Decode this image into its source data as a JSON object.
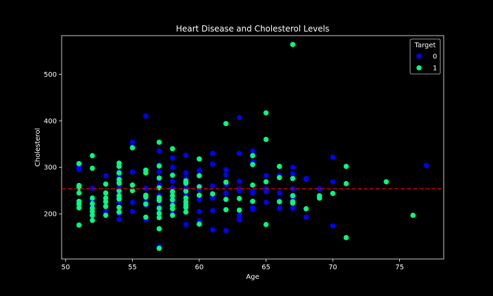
{
  "chart_data": {
    "type": "scatter",
    "title": "Heart Disease and Cholesterol Levels",
    "xlabel": "Age",
    "ylabel": "Cholesterol",
    "xlim": [
      49.7,
      78.3
    ],
    "ylim": [
      103,
      583
    ],
    "xticks": [
      50,
      55,
      60,
      65,
      70,
      75
    ],
    "yticks": [
      200,
      300,
      400,
      500
    ],
    "grid": false,
    "legend": {
      "title": "Target",
      "placement": "top-right"
    },
    "reference_line": {
      "y": 254,
      "color": "#cc0000",
      "style": "dashed"
    },
    "series": [
      {
        "name": "0",
        "color": "#0000ff",
        "points": [
          [
            51,
            300
          ],
          [
            51,
            305
          ],
          [
            51,
            298
          ],
          [
            51,
            295
          ],
          [
            52,
            255
          ],
          [
            52,
            230
          ],
          [
            52,
            228
          ],
          [
            52,
            215
          ],
          [
            52,
            205
          ],
          [
            52,
            200
          ],
          [
            52,
            195
          ],
          [
            53,
            282
          ],
          [
            53,
            265
          ],
          [
            53,
            245
          ],
          [
            53,
            228
          ],
          [
            53,
            205
          ],
          [
            54,
            290
          ],
          [
            54,
            283
          ],
          [
            54,
            270
          ],
          [
            54,
            258
          ],
          [
            54,
            246
          ],
          [
            54,
            236
          ],
          [
            54,
            226
          ],
          [
            54,
            215
          ],
          [
            54,
            200
          ],
          [
            54,
            188
          ],
          [
            55,
            354
          ],
          [
            55,
            345
          ],
          [
            55,
            290
          ],
          [
            55,
            262
          ],
          [
            55,
            225
          ],
          [
            55,
            205
          ],
          [
            56,
            410
          ],
          [
            56,
            290
          ],
          [
            56,
            255
          ],
          [
            56,
            240
          ],
          [
            56,
            225
          ],
          [
            56,
            218
          ],
          [
            56,
            187
          ],
          [
            57,
            335
          ],
          [
            57,
            305
          ],
          [
            57,
            290
          ],
          [
            57,
            276
          ],
          [
            57,
            262
          ],
          [
            57,
            240
          ],
          [
            57,
            233
          ],
          [
            57,
            228
          ],
          [
            57,
            215
          ],
          [
            57,
            205
          ],
          [
            57,
            130
          ],
          [
            58,
            320
          ],
          [
            58,
            300
          ],
          [
            58,
            284
          ],
          [
            58,
            270
          ],
          [
            58,
            256
          ],
          [
            58,
            245
          ],
          [
            58,
            234
          ],
          [
            58,
            225
          ],
          [
            58,
            218
          ],
          [
            58,
            212
          ],
          [
            58,
            200
          ],
          [
            59,
            326
          ],
          [
            59,
            288
          ],
          [
            59,
            276
          ],
          [
            59,
            264
          ],
          [
            59,
            255
          ],
          [
            59,
            240
          ],
          [
            59,
            224
          ],
          [
            59,
            213
          ],
          [
            59,
            204
          ],
          [
            59,
            177
          ],
          [
            60,
            293
          ],
          [
            60,
            282
          ],
          [
            60,
            260
          ],
          [
            60,
            252
          ],
          [
            60,
            230
          ],
          [
            60,
            205
          ],
          [
            60,
            185
          ],
          [
            61,
            330
          ],
          [
            61,
            307
          ],
          [
            61,
            260
          ],
          [
            61,
            243
          ],
          [
            61,
            234
          ],
          [
            61,
            207
          ],
          [
            61,
            166
          ],
          [
            62,
            295
          ],
          [
            62,
            284
          ],
          [
            62,
            268
          ],
          [
            62,
            263
          ],
          [
            62,
            245
          ],
          [
            62,
            232
          ],
          [
            62,
            209
          ],
          [
            62,
            164
          ],
          [
            63,
            407
          ],
          [
            63,
            330
          ],
          [
            63,
            270
          ],
          [
            63,
            254
          ],
          [
            63,
            250
          ],
          [
            63,
            197
          ],
          [
            63,
            192
          ],
          [
            63,
            187
          ],
          [
            64,
            335
          ],
          [
            64,
            326
          ],
          [
            64,
            312
          ],
          [
            64,
            305
          ],
          [
            64,
            248
          ],
          [
            64,
            245
          ],
          [
            64,
            226
          ],
          [
            64,
            213
          ],
          [
            64,
            210
          ],
          [
            65,
            282
          ],
          [
            65,
            269
          ],
          [
            65,
            254
          ],
          [
            65,
            248
          ],
          [
            65,
            225
          ],
          [
            66,
            283
          ],
          [
            66,
            245
          ],
          [
            66,
            228
          ],
          [
            66,
            212
          ],
          [
            67,
            300
          ],
          [
            67,
            286
          ],
          [
            67,
            276
          ],
          [
            67,
            254
          ],
          [
            67,
            240
          ],
          [
            67,
            230
          ],
          [
            67,
            212
          ],
          [
            68,
            276
          ],
          [
            68,
            274
          ],
          [
            68,
            193
          ],
          [
            69,
            254
          ],
          [
            70,
            322
          ],
          [
            70,
            269
          ],
          [
            70,
            174
          ],
          [
            77,
            304
          ]
        ]
      },
      {
        "name": "1",
        "color": "#00ff7f",
        "points": [
          [
            51,
            308
          ],
          [
            51,
            261
          ],
          [
            51,
            256
          ],
          [
            51,
            245
          ],
          [
            51,
            227
          ],
          [
            51,
            221
          ],
          [
            51,
            213
          ],
          [
            51,
            176
          ],
          [
            52,
            325
          ],
          [
            52,
            298
          ],
          [
            52,
            234
          ],
          [
            52,
            222
          ],
          [
            52,
            212
          ],
          [
            52,
            205
          ],
          [
            52,
            197
          ],
          [
            52,
            186
          ],
          [
            53,
            264
          ],
          [
            53,
            245
          ],
          [
            53,
            234
          ],
          [
            53,
            226
          ],
          [
            53,
            216
          ],
          [
            53,
            197
          ],
          [
            54,
            309
          ],
          [
            54,
            302
          ],
          [
            54,
            288
          ],
          [
            54,
            274
          ],
          [
            54,
            266
          ],
          [
            54,
            250
          ],
          [
            54,
            239
          ],
          [
            54,
            232
          ],
          [
            54,
            214
          ],
          [
            54,
            204
          ],
          [
            55,
            342
          ],
          [
            55,
            262
          ],
          [
            55,
            250
          ],
          [
            56,
            294
          ],
          [
            56,
            288
          ],
          [
            56,
            240
          ],
          [
            56,
            236
          ],
          [
            56,
            221
          ],
          [
            56,
            193
          ],
          [
            57,
            354
          ],
          [
            57,
            303
          ],
          [
            57,
            277
          ],
          [
            57,
            256
          ],
          [
            57,
            235
          ],
          [
            57,
            229
          ],
          [
            57,
            212
          ],
          [
            57,
            201
          ],
          [
            57,
            192
          ],
          [
            57,
            168
          ],
          [
            57,
            126
          ],
          [
            58,
            340
          ],
          [
            58,
            283
          ],
          [
            58,
            248
          ],
          [
            58,
            239
          ],
          [
            58,
            230
          ],
          [
            58,
            218
          ],
          [
            58,
            211
          ],
          [
            58,
            197
          ],
          [
            59,
            271
          ],
          [
            59,
            266
          ],
          [
            59,
            249
          ],
          [
            59,
            234
          ],
          [
            59,
            226
          ],
          [
            59,
            219
          ],
          [
            59,
            214
          ],
          [
            59,
            204
          ],
          [
            60,
            318
          ],
          [
            60,
            282
          ],
          [
            60,
            258
          ],
          [
            60,
            240
          ],
          [
            60,
            178
          ],
          [
            61,
            243
          ],
          [
            62,
            394
          ],
          [
            62,
            268
          ],
          [
            62,
            231
          ],
          [
            62,
            209
          ],
          [
            63,
            233
          ],
          [
            63,
            208
          ],
          [
            64,
            325
          ],
          [
            64,
            306
          ],
          [
            64,
            262
          ],
          [
            64,
            227
          ],
          [
            65,
            417
          ],
          [
            65,
            360
          ],
          [
            65,
            269
          ],
          [
            65,
            177
          ],
          [
            66,
            302
          ],
          [
            66,
            278
          ],
          [
            66,
            226
          ],
          [
            67,
            564
          ],
          [
            67,
            276
          ],
          [
            67,
            239
          ],
          [
            67,
            226
          ],
          [
            67,
            223
          ],
          [
            68,
            211
          ],
          [
            69,
            239
          ],
          [
            69,
            234
          ],
          [
            70,
            244
          ],
          [
            71,
            302
          ],
          [
            71,
            265
          ],
          [
            71,
            149
          ],
          [
            74,
            269
          ],
          [
            76,
            197
          ]
        ]
      }
    ]
  }
}
